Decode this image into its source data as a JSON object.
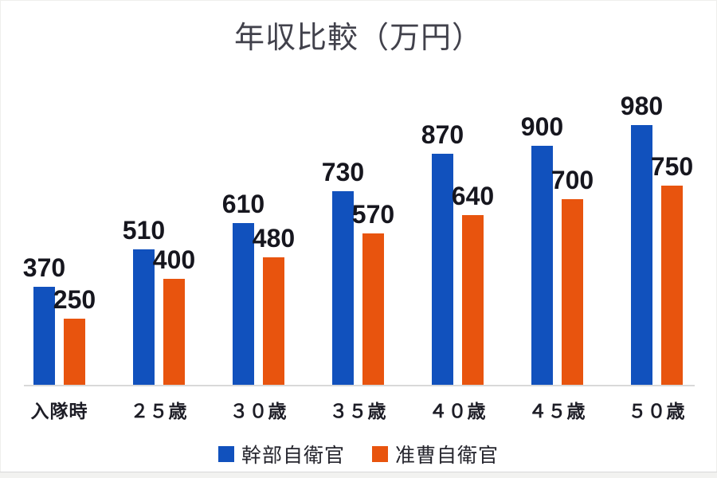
{
  "chart_data": {
    "type": "bar",
    "title": "年収比較（万円）",
    "categories": [
      "入隊時",
      "２５歳",
      "３０歳",
      "３５歳",
      "４０歳",
      "４５歳",
      "５０歳"
    ],
    "series": [
      {
        "name": "幹部自衛官",
        "color": "#1151bd",
        "values": [
          370,
          510,
          610,
          730,
          870,
          900,
          980
        ]
      },
      {
        "name": "准曹自衛官",
        "color": "#e8540e",
        "values": [
          250,
          400,
          480,
          570,
          640,
          700,
          750
        ]
      }
    ],
    "ylim": [
      0,
      1000
    ],
    "xlabel": "",
    "ylabel": "",
    "grid": false,
    "data_labels": true,
    "legend_position": "bottom"
  },
  "styles": {
    "title_color": "#41414b",
    "data_label_color": "#16161e",
    "axis_label_color": "#1d1d26",
    "axis_line_color": "#d9d9d9",
    "background": "#ffffff"
  }
}
